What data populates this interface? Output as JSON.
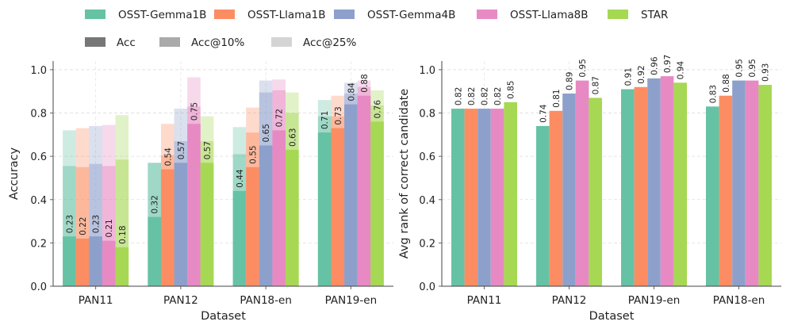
{
  "legend": {
    "models": [
      {
        "name": "OSST-Gemma1B",
        "color": "#66c2a5"
      },
      {
        "name": "OSST-Llama1B",
        "color": "#fc8d62"
      },
      {
        "name": "OSST-Gemma4B",
        "color": "#8da0cb"
      },
      {
        "name": "OSST-Llama8B",
        "color": "#e78ac3"
      },
      {
        "name": "STAR",
        "color": "#a6d854"
      }
    ],
    "metrics": [
      {
        "name": "Acc",
        "color": "#777777"
      },
      {
        "name": "Acc@10%",
        "color": "#aaaaaa"
      },
      {
        "name": "Acc@25%",
        "color": "#d4d4d4"
      }
    ]
  },
  "chart_data": [
    {
      "type": "bar",
      "variant": "stacked-overlay",
      "xlabel": "Dataset",
      "ylabel": "Accuracy",
      "ylim": [
        0,
        1.04
      ],
      "yticks": [
        "0.0",
        "0.2",
        "0.4",
        "0.6",
        "0.8",
        "1.0"
      ],
      "grid": true,
      "categories": [
        "PAN11",
        "PAN12",
        "PAN18-en",
        "PAN19-en"
      ],
      "series": [
        {
          "name": "OSST-Gemma1B",
          "acc": [
            0.23,
            0.32,
            0.44,
            0.71
          ],
          "acc10": [
            0.555,
            0.57,
            0.61,
            0.785
          ],
          "acc25": [
            0.72,
            0.57,
            0.735,
            0.86
          ],
          "labels": [
            "0.23",
            "0.32",
            "0.44",
            "0.71"
          ]
        },
        {
          "name": "OSST-Llama1B",
          "acc": [
            0.22,
            0.54,
            0.55,
            0.73
          ],
          "acc10": [
            0.55,
            0.605,
            0.71,
            0.785
          ],
          "acc25": [
            0.73,
            0.75,
            0.825,
            0.88
          ],
          "labels": [
            "0.22",
            "0.54",
            "0.55",
            "0.73"
          ]
        },
        {
          "name": "OSST-Gemma4B",
          "acc": [
            0.23,
            0.57,
            0.65,
            0.84
          ],
          "acc10": [
            0.565,
            0.67,
            0.895,
            0.89
          ],
          "acc25": [
            0.74,
            0.82,
            0.95,
            0.94
          ],
          "labels": [
            "0.23",
            "0.57",
            "0.65",
            "0.84"
          ]
        },
        {
          "name": "OSST-Llama8B",
          "acc": [
            0.21,
            0.75,
            0.72,
            0.88
          ],
          "acc10": [
            0.555,
            0.83,
            0.905,
            0.92
          ],
          "acc25": [
            0.745,
            0.965,
            0.955,
            0.95
          ],
          "labels": [
            "0.21",
            "0.75",
            "0.72",
            "0.88"
          ]
        },
        {
          "name": "STAR",
          "acc": [
            0.18,
            0.57,
            0.63,
            0.76
          ],
          "acc10": [
            0.585,
            0.67,
            0.8,
            0.835
          ],
          "acc25": [
            0.79,
            0.785,
            0.895,
            0.905
          ],
          "labels": [
            "0.18",
            "0.57",
            "0.63",
            "0.76"
          ]
        }
      ]
    },
    {
      "type": "bar",
      "xlabel": "Dataset",
      "ylabel": "Avg rank of correct candidate",
      "ylim": [
        0,
        1.04
      ],
      "yticks": [
        "0.0",
        "0.2",
        "0.4",
        "0.6",
        "0.8",
        "1.0"
      ],
      "grid": true,
      "categories": [
        "PAN11",
        "PAN12",
        "PAN19-en",
        "PAN18-en"
      ],
      "series": [
        {
          "name": "OSST-Gemma1B",
          "values": [
            0.82,
            0.74,
            0.91,
            0.83
          ],
          "labels": [
            "0.82",
            "0.74",
            "0.91",
            "0.83"
          ]
        },
        {
          "name": "OSST-Llama1B",
          "values": [
            0.82,
            0.81,
            0.92,
            0.88
          ],
          "labels": [
            "0.82",
            "0.81",
            "0.92",
            "0.88"
          ]
        },
        {
          "name": "OSST-Gemma4B",
          "values": [
            0.82,
            0.89,
            0.96,
            0.95
          ],
          "labels": [
            "0.82",
            "0.89",
            "0.96",
            "0.95"
          ]
        },
        {
          "name": "OSST-Llama8B",
          "values": [
            0.82,
            0.95,
            0.97,
            0.95
          ],
          "labels": [
            "0.82",
            "0.95",
            "0.97",
            "0.95"
          ]
        },
        {
          "name": "STAR",
          "values": [
            0.85,
            0.87,
            0.94,
            0.93
          ],
          "labels": [
            "0.85",
            "0.87",
            "0.94",
            "0.93"
          ]
        }
      ]
    }
  ]
}
